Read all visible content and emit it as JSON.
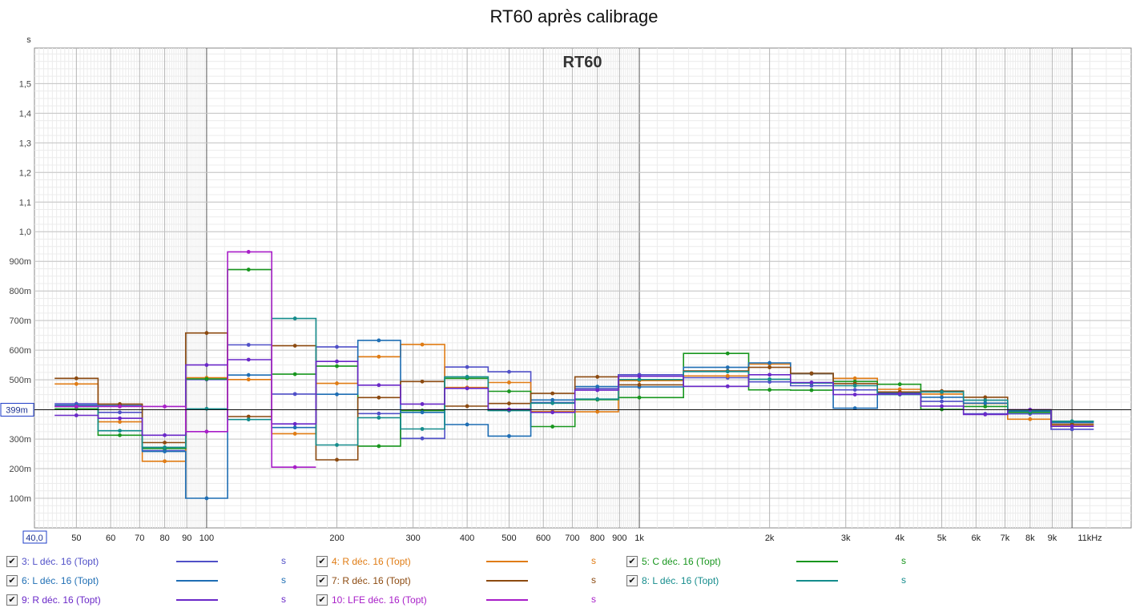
{
  "chart_data": {
    "type": "line",
    "title": "RT60 après calibrage",
    "inner_title": "RT60",
    "ylabel": "s",
    "xlabel": "",
    "x_scale": "log",
    "xlim_hz": [
      40,
      13700
    ],
    "ylim_s": [
      0,
      1.62
    ],
    "grid": true,
    "y_ticks": [
      {
        "v": 0.1,
        "label": "100m"
      },
      {
        "v": 0.2,
        "label": "200m"
      },
      {
        "v": 0.3,
        "label": "300m"
      },
      {
        "v": 0.5,
        "label": "500m"
      },
      {
        "v": 0.6,
        "label": "600m"
      },
      {
        "v": 0.7,
        "label": "700m"
      },
      {
        "v": 0.8,
        "label": "800m"
      },
      {
        "v": 0.9,
        "label": "900m"
      },
      {
        "v": 1.0,
        "label": "1,0"
      },
      {
        "v": 1.1,
        "label": "1,1"
      },
      {
        "v": 1.2,
        "label": "1,2"
      },
      {
        "v": 1.3,
        "label": "1,3"
      },
      {
        "v": 1.4,
        "label": "1,4"
      },
      {
        "v": 1.5,
        "label": "1,5"
      }
    ],
    "x_ticks": [
      {
        "v": 50,
        "label": "50"
      },
      {
        "v": 60,
        "label": "60"
      },
      {
        "v": 70,
        "label": "70"
      },
      {
        "v": 80,
        "label": "80"
      },
      {
        "v": 90,
        "label": "90"
      },
      {
        "v": 100,
        "label": "100"
      },
      {
        "v": 200,
        "label": "200"
      },
      {
        "v": 300,
        "label": "300"
      },
      {
        "v": 400,
        "label": "400"
      },
      {
        "v": 500,
        "label": "500"
      },
      {
        "v": 600,
        "label": "600"
      },
      {
        "v": 700,
        "label": "700"
      },
      {
        "v": 800,
        "label": "800"
      },
      {
        "v": 900,
        "label": "900"
      },
      {
        "v": 1000,
        "label": "1k"
      },
      {
        "v": 2000,
        "label": "2k"
      },
      {
        "v": 3000,
        "label": "3k"
      },
      {
        "v": 4000,
        "label": "4k"
      },
      {
        "v": 5000,
        "label": "5k"
      },
      {
        "v": 6000,
        "label": "6k"
      },
      {
        "v": 7000,
        "label": "7k"
      },
      {
        "v": 8000,
        "label": "8k"
      },
      {
        "v": 9000,
        "label": "9k"
      },
      {
        "v": 11000,
        "label": "11kHz"
      }
    ],
    "x_min_label": "40,0",
    "cursor": {
      "value": 0.399,
      "label": "399m"
    },
    "bands_hz": [
      50,
      63,
      80,
      100,
      125,
      160,
      200,
      250,
      315,
      400,
      500,
      630,
      800,
      1000,
      1600,
      2000,
      2500,
      3150,
      4000,
      5000,
      6300,
      8000,
      10000
    ],
    "series": [
      {
        "name": "3: L déc. 16 (Topt)",
        "color": "#5050c8",
        "values": [
          0.419,
          0.39,
          0.261,
          0.501,
          0.618,
          0.452,
          0.611,
          0.386,
          0.302,
          0.543,
          0.527,
          0.423,
          0.47,
          0.517,
          0.507,
          0.493,
          0.48,
          0.466,
          0.458,
          0.427,
          0.385,
          0.385,
          0.333
        ]
      },
      {
        "name": "4: R déc. 16 (Topt)",
        "color": "#e07c14",
        "values": [
          0.486,
          0.358,
          0.225,
          0.507,
          0.501,
          0.318,
          0.488,
          0.578,
          0.619,
          0.474,
          0.491,
          0.393,
          0.392,
          0.497,
          0.513,
          0.553,
          0.52,
          0.505,
          0.468,
          0.452,
          0.42,
          0.367,
          0.345
        ]
      },
      {
        "name": "5: C déc. 16 (Topt)",
        "color": "#18961e",
        "values": [
          0.402,
          0.313,
          0.268,
          0.503,
          0.872,
          0.519,
          0.546,
          0.276,
          0.396,
          0.505,
          0.461,
          0.342,
          0.433,
          0.44,
          0.589,
          0.466,
          0.465,
          0.494,
          0.485,
          0.4,
          0.41,
          0.39,
          0.36
        ]
      },
      {
        "name": "6: L déc. 16 (Topt)",
        "color": "#1e6eb4",
        "values": [
          0.414,
          0.413,
          0.258,
          0.1,
          0.516,
          0.339,
          0.451,
          0.633,
          0.39,
          0.349,
          0.31,
          0.432,
          0.477,
          0.476,
          0.542,
          0.557,
          0.521,
          0.404,
          0.455,
          0.441,
          0.421,
          0.394,
          0.356
        ]
      },
      {
        "name": "7: R déc. 16 (Topt)",
        "color": "#8c4a10",
        "values": [
          0.505,
          0.418,
          0.288,
          0.658,
          0.376,
          0.615,
          0.23,
          0.44,
          0.494,
          0.411,
          0.42,
          0.454,
          0.51,
          0.483,
          0.53,
          0.542,
          0.522,
          0.487,
          0.459,
          0.462,
          0.441,
          0.399,
          0.35
        ]
      },
      {
        "name": "8: L déc. 16 (Topt)",
        "color": "#148c8c",
        "values": [
          0.41,
          0.328,
          0.272,
          0.402,
          0.366,
          0.707,
          0.28,
          0.372,
          0.334,
          0.51,
          0.396,
          0.421,
          0.435,
          0.501,
          0.528,
          0.502,
          0.489,
          0.48,
          0.45,
          0.459,
          0.431,
          0.396,
          0.36
        ]
      },
      {
        "name": "9: R déc. 16 (Topt)",
        "color": "#6a28c8",
        "values": [
          0.38,
          0.37,
          0.313,
          0.55,
          0.568,
          0.351,
          0.562,
          0.482,
          0.418,
          0.471,
          0.4,
          0.39,
          0.465,
          0.512,
          0.478,
          0.517,
          0.491,
          0.45,
          0.452,
          0.411,
          0.383,
          0.399,
          0.343
        ]
      },
      {
        "name": "10: LFE déc. 16 (Topt)",
        "color": "#a81ec8",
        "values": [
          0.41,
          0.41,
          0.41,
          0.325,
          0.932,
          0.205,
          null,
          null,
          null,
          null,
          null,
          null,
          null,
          null,
          null,
          null,
          null,
          null,
          null,
          null,
          null,
          null,
          null
        ]
      }
    ]
  },
  "legend": [
    {
      "label": "3: L déc. 16 (Topt)",
      "color": "#5050c8",
      "unit": "s",
      "checked": "✔"
    },
    {
      "label": "4: R déc. 16 (Topt)",
      "color": "#e07c14",
      "unit": "s",
      "checked": "✔"
    },
    {
      "label": "5: C déc. 16 (Topt)",
      "color": "#18961e",
      "unit": "s",
      "checked": "✔"
    },
    {
      "label": "6: L déc. 16 (Topt)",
      "color": "#1e6eb4",
      "unit": "s",
      "checked": "✔"
    },
    {
      "label": "7: R déc. 16 (Topt)",
      "color": "#8c4a10",
      "unit": "s",
      "checked": "✔"
    },
    {
      "label": "8: L déc. 16 (Topt)",
      "color": "#148c8c",
      "unit": "s",
      "checked": "✔"
    },
    {
      "label": "9: R déc. 16 (Topt)",
      "color": "#6a28c8",
      "unit": "s",
      "checked": "✔"
    },
    {
      "label": "10: LFE déc. 16 (Topt)",
      "color": "#a81ec8",
      "unit": "s",
      "checked": "✔"
    }
  ]
}
